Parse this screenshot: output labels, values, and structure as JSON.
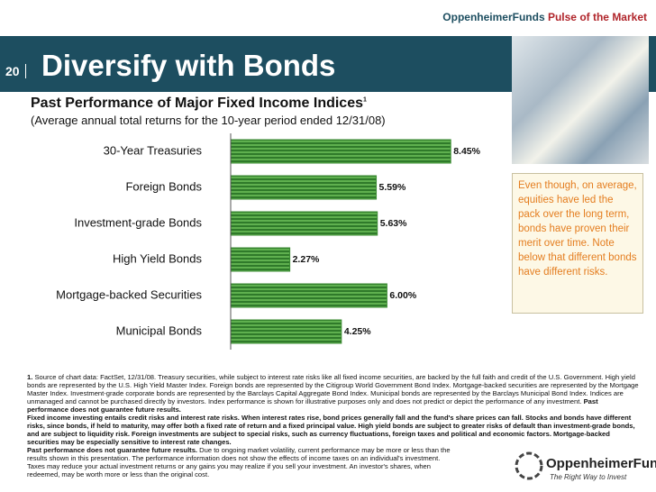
{
  "header": {
    "brand": "OppenheimerFunds",
    "tagline": "Pulse of the Market",
    "page_number": "20",
    "heading": "Diversify with Bonds"
  },
  "chart_data": {
    "type": "hbar",
    "title": "Past Performance of Major Fixed Income Indices",
    "title_note": "1",
    "subtitle": "(Average annual total returns for the 10-year period ended 12/31/08)",
    "categories": [
      "30-Year Treasuries",
      "Foreign Bonds",
      "Investment-grade Bonds",
      "High Yield Bonds",
      "Mortgage-backed Securities",
      "Municipal Bonds"
    ],
    "values": [
      8.45,
      5.59,
      5.63,
      2.27,
      6.0,
      4.25
    ],
    "value_labels": [
      "8.45%",
      "5.59%",
      "5.63%",
      "2.27%",
      "6.00%",
      "4.25%"
    ],
    "color": "#3c8c34",
    "xlim": [
      0,
      10
    ]
  },
  "callout": "Even though, on average, equities have led the pack over the long term, bonds have proven their merit over time. Note below that different bonds have different risks.",
  "footnotes": {
    "number": "1.",
    "source": "Source of chart data: FactSet, 12/31/08. Treasury securities, while subject to interest rate risks like all fixed income securities, are backed by the full faith and credit of the U.S. Government. High yield bonds are represented by the U.S. High Yield Master Index. Foreign bonds are represented by the Citigroup World Government Bond Index. Mortgage-backed securities are represented by the Mortgage Master Index. Investment-grade corporate bonds are represented by the Barclays Capital Aggregate Bond Index. Municipal bonds are represented by the Barclays Municipal Bond Index. Indices are unmanaged and cannot be purchased directly by investors. Index performance is shown for illustrative purposes only and does not predict or depict the performance of any investment.",
    "source_bold": "Past performance does not guarantee future results.",
    "risks": "Fixed income investing entails credit risks and interest rate risks. When interest rates rise, bond prices generally fall and the fund's share prices can fall. Stocks and bonds have different risks, since bonds, if held to maturity, may offer both a fixed rate of return and a fixed principal value. High yield bonds are subject to greater risks of default than investment-grade bonds, and are subject to liquidity risk. Foreign investments are subject to special risks, such as currency fluctuations, foreign taxes and political and economic factors. Mortgage-backed securities may be especially sensitive to interest rate changes.",
    "past_bold": "Past performance does not guarantee future results.",
    "past": " Due to ongoing market volatility, current performance may be more or less than the results shown in this presentation. The performance information does not show the effects of income taxes on an individual's investment. Taxes may reduce your actual investment returns or any gains you may realize if you sell your investment. An investor's shares, when redeemed, may be worth more or less than the original cost."
  },
  "logo": {
    "name": "OppenheimerFunds",
    "slogan": "The Right Way to Invest"
  }
}
